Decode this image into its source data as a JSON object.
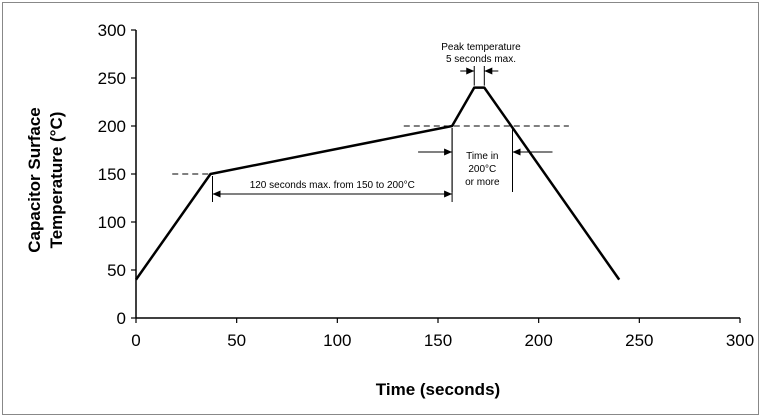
{
  "chart_data": {
    "type": "line",
    "title": "",
    "xlabel": "Time (seconds)",
    "ylabel_lines": [
      "Capacitor Surface",
      "Temperature (°C)"
    ],
    "xlim": [
      0,
      300
    ],
    "ylim": [
      0,
      300
    ],
    "xticks": [
      0,
      50,
      100,
      150,
      200,
      250,
      300
    ],
    "yticks": [
      0,
      50,
      100,
      150,
      200,
      250,
      300
    ],
    "grid": false,
    "series": [
      {
        "x": [
          0,
          37,
          157,
          168,
          173,
          240
        ],
        "y": [
          40,
          150,
          200,
          240,
          240,
          40
        ]
      }
    ],
    "annotations": {
      "peak_lines": [
        "Peak temperature",
        "5 seconds max."
      ],
      "preheat_label": "120 seconds max. from 150 to 200°C",
      "time_lines": [
        "Time in",
        "200°C",
        "or more"
      ]
    }
  }
}
